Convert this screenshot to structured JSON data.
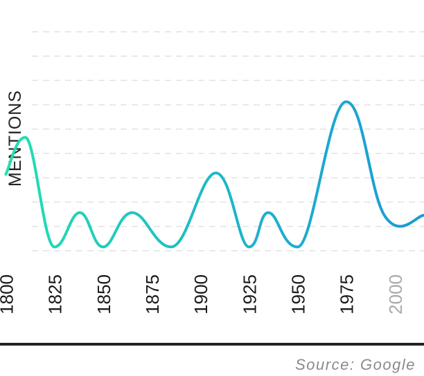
{
  "chart_data": {
    "type": "line",
    "title": "",
    "xlabel": "",
    "ylabel": "MENTIONS",
    "x": [
      1800,
      1810,
      1825,
      1838,
      1850,
      1865,
      1885,
      1908,
      1925,
      1935,
      1950,
      1975,
      1995,
      2015
    ],
    "values": [
      5.5,
      8.3,
      0.0,
      2.6,
      0.0,
      2.6,
      0.0,
      5.6,
      0.0,
      2.6,
      0.0,
      11.0,
      2.3,
      2.4
    ],
    "xlim": [
      1797,
      2015
    ],
    "ylim": [
      -0.3,
      16.3
    ],
    "x_ticks": [
      "1800",
      "1825",
      "1850",
      "1875",
      "1900",
      "1925",
      "1950",
      "1975",
      "2000"
    ],
    "muted_ticks": [
      "2000"
    ],
    "y_ticks_shown": false,
    "grid": true,
    "gradient": [
      "#22e0b0",
      "#1eb8c8",
      "#1a9ad6"
    ]
  },
  "source": "Source: Google"
}
